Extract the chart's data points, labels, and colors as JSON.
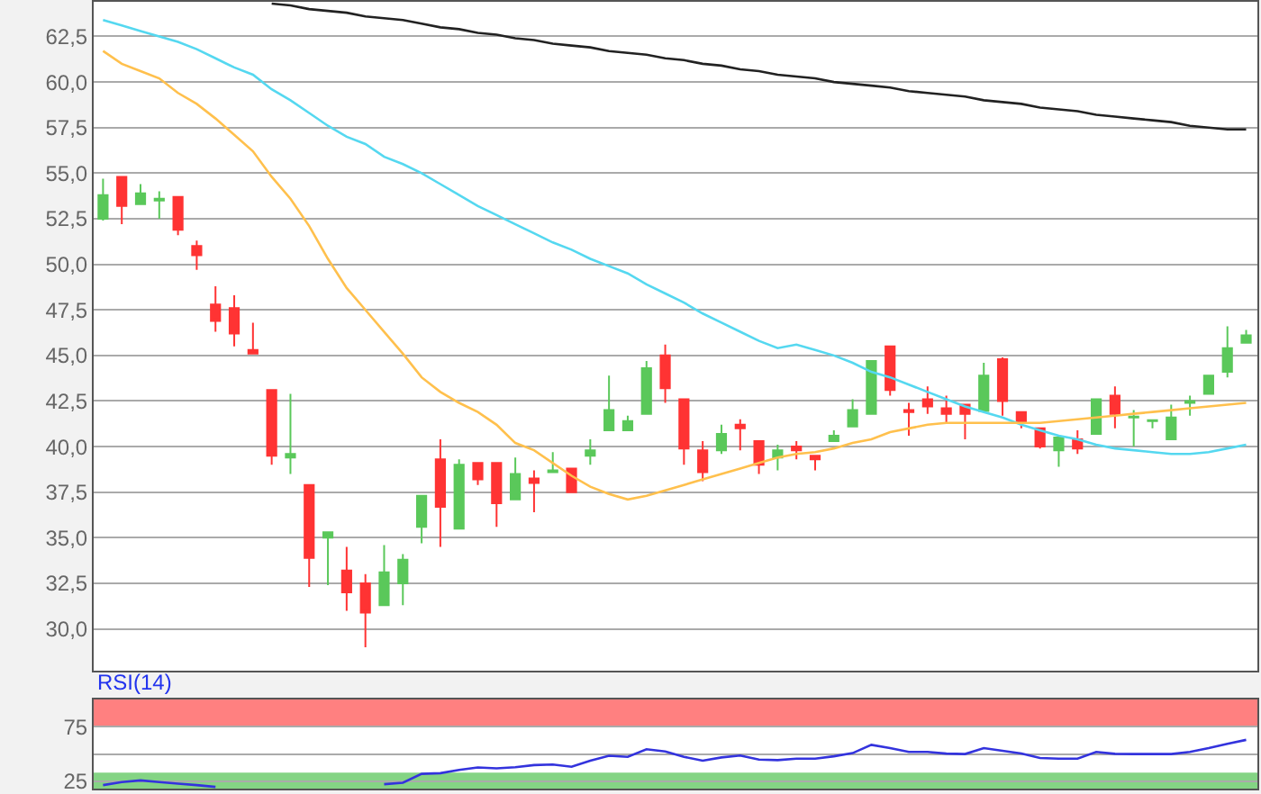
{
  "chart_data": [
    {
      "type": "candlestick",
      "categories": [
        null,
        null,
        null,
        null,
        null,
        null,
        null,
        null,
        null,
        null,
        null,
        null,
        null,
        null,
        null,
        null,
        null,
        null,
        null,
        null,
        null,
        null,
        null,
        null,
        null,
        null,
        null,
        null,
        null,
        null,
        null,
        null,
        null,
        null,
        null,
        null,
        null,
        null,
        null,
        null,
        null,
        null,
        null,
        null,
        null,
        null,
        null,
        null,
        null,
        null,
        null,
        null,
        null,
        null,
        null,
        null,
        null,
        null,
        null,
        null,
        null,
        null
      ],
      "ohlc": [
        [
          52.5,
          54.7,
          52.4,
          53.8
        ],
        [
          54.8,
          54.8,
          52.2,
          53.2
        ],
        [
          53.3,
          54.4,
          53.3,
          53.9
        ],
        [
          53.5,
          54.0,
          52.5,
          53.6
        ],
        [
          53.7,
          53.7,
          51.6,
          51.9
        ],
        [
          51.0,
          51.3,
          49.7,
          50.5
        ],
        [
          47.8,
          48.8,
          46.3,
          46.9
        ],
        [
          47.6,
          48.3,
          45.5,
          46.2
        ],
        [
          45.3,
          46.8,
          45.1,
          45.1
        ],
        [
          43.1,
          43.1,
          39.0,
          39.5
        ],
        [
          39.4,
          42.9,
          38.5,
          39.6
        ],
        [
          37.9,
          37.9,
          32.3,
          33.9
        ],
        [
          35.0,
          35.3,
          32.4,
          35.3
        ],
        [
          33.2,
          34.5,
          31.0,
          32.0
        ],
        [
          32.5,
          33.0,
          29.0,
          30.9
        ],
        [
          31.3,
          34.6,
          31.3,
          33.1
        ],
        [
          32.5,
          34.1,
          31.3,
          33.8
        ],
        [
          35.6,
          37.3,
          34.7,
          37.3
        ],
        [
          39.3,
          40.4,
          34.5,
          36.7
        ],
        [
          35.5,
          39.3,
          35.5,
          39.0
        ],
        [
          39.1,
          39.1,
          37.9,
          38.2
        ],
        [
          39.1,
          39.1,
          35.6,
          36.9
        ],
        [
          37.1,
          39.4,
          37.1,
          38.5
        ],
        [
          38.25,
          38.7,
          36.4,
          38.0
        ],
        [
          38.6,
          39.7,
          38.6,
          38.7
        ],
        [
          38.8,
          38.8,
          37.5,
          37.5
        ],
        [
          39.5,
          40.4,
          39.0,
          39.8
        ],
        [
          40.9,
          43.9,
          40.9,
          42.0
        ],
        [
          40.9,
          41.7,
          40.9,
          41.4
        ],
        [
          41.8,
          44.7,
          41.8,
          44.3
        ],
        [
          45.0,
          45.6,
          42.4,
          43.2
        ],
        [
          42.6,
          42.6,
          39.0,
          39.9
        ],
        [
          39.8,
          40.3,
          38.1,
          38.6
        ],
        [
          39.8,
          41.2,
          39.6,
          40.7
        ],
        [
          41.2,
          41.5,
          39.8,
          41.0
        ],
        [
          40.3,
          40.3,
          38.5,
          39.0
        ],
        [
          39.4,
          40.1,
          38.7,
          39.8
        ],
        [
          40.0,
          40.3,
          39.3,
          39.8
        ],
        [
          39.5,
          39.5,
          38.7,
          39.3
        ],
        [
          40.3,
          40.9,
          40.3,
          40.6
        ],
        [
          41.1,
          42.6,
          41.1,
          42.0
        ],
        [
          41.8,
          44.7,
          41.8,
          44.7
        ],
        [
          45.5,
          45.5,
          42.8,
          43.1
        ],
        [
          42.0,
          42.4,
          40.6,
          41.9
        ],
        [
          42.6,
          43.3,
          41.8,
          42.2
        ],
        [
          42.1,
          42.8,
          41.3,
          41.8
        ],
        [
          42.3,
          42.3,
          40.4,
          41.8
        ],
        [
          41.95,
          44.6,
          41.95,
          43.9
        ],
        [
          44.8,
          44.9,
          41.7,
          42.5
        ],
        [
          41.9,
          41.9,
          41.0,
          41.3
        ],
        [
          41.0,
          41.0,
          39.9,
          40.0
        ],
        [
          39.8,
          40.5,
          38.9,
          40.5
        ],
        [
          40.4,
          40.9,
          39.6,
          39.9
        ],
        [
          40.7,
          42.6,
          40.7,
          42.6
        ],
        [
          42.8,
          43.3,
          41.0,
          41.8
        ],
        [
          41.6,
          42.0,
          40.0,
          41.65
        ],
        [
          41.4,
          41.45,
          41.0,
          41.45
        ],
        [
          40.4,
          42.3,
          40.4,
          41.6
        ],
        [
          42.4,
          42.8,
          41.7,
          42.5
        ],
        [
          42.9,
          43.9,
          42.9,
          43.9
        ],
        [
          44.1,
          46.6,
          43.8,
          45.4
        ],
        [
          45.7,
          46.4,
          45.7,
          46.1
        ]
      ],
      "colors": [
        "#5ac85a",
        "#ff3333",
        "#5ac85a",
        "#5ac85a",
        "#ff3333",
        "#ff3333",
        "#ff3333",
        "#ff3333",
        "#ff3333",
        "#ff3333",
        "#5ac85a",
        "#ff3333",
        "#5ac85a",
        "#ff3333",
        "#ff3333",
        "#5ac85a",
        "#5ac85a",
        "#5ac85a",
        "#ff3333",
        "#5ac85a",
        "#ff3333",
        "#ff3333",
        "#5ac85a",
        "#ff3333",
        "#5ac85a",
        "#ff3333",
        "#5ac85a",
        "#5ac85a",
        "#5ac85a",
        "#5ac85a",
        "#ff3333",
        "#ff3333",
        "#ff3333",
        "#5ac85a",
        "#ff3333",
        "#ff3333",
        "#5ac85a",
        "#ff3333",
        "#ff3333",
        "#5ac85a",
        "#5ac85a",
        "#5ac85a",
        "#ff3333",
        "#ff3333",
        "#ff3333",
        "#ff3333",
        "#ff3333",
        "#5ac85a",
        "#ff3333",
        "#ff3333",
        "#ff3333",
        "#5ac85a",
        "#ff3333",
        "#5ac85a",
        "#ff3333",
        "#5ac85a",
        "#5ac85a",
        "#5ac85a",
        "#5ac85a",
        "#5ac85a",
        "#5ac85a",
        "#5ac85a"
      ],
      "series": [
        {
          "type": "line",
          "color": "#222222",
          "values": [
            null,
            null,
            null,
            null,
            null,
            null,
            null,
            null,
            null,
            64.3,
            64.2,
            64.0,
            63.9,
            63.8,
            63.6,
            63.5,
            63.4,
            63.2,
            63.0,
            62.9,
            62.7,
            62.6,
            62.4,
            62.3,
            62.1,
            62.0,
            61.9,
            61.7,
            61.6,
            61.5,
            61.3,
            61.2,
            61.0,
            60.9,
            60.7,
            60.6,
            60.4,
            60.3,
            60.2,
            60.0,
            59.9,
            59.8,
            59.7,
            59.5,
            59.4,
            59.3,
            59.2,
            59.0,
            58.9,
            58.8,
            58.6,
            58.5,
            58.4,
            58.2,
            58.1,
            58.0,
            57.9,
            57.8,
            57.6,
            57.5,
            57.4,
            57.4
          ]
        },
        {
          "type": "line",
          "color": "#55d8f0",
          "values": [
            63.4,
            63.1,
            62.8,
            62.5,
            62.2,
            61.8,
            61.3,
            60.8,
            60.4,
            59.6,
            59.0,
            58.3,
            57.6,
            57.0,
            56.6,
            55.9,
            55.5,
            55.0,
            54.4,
            53.8,
            53.2,
            52.7,
            52.2,
            51.7,
            51.2,
            50.8,
            50.3,
            49.9,
            49.5,
            48.9,
            48.4,
            47.9,
            47.3,
            46.8,
            46.3,
            45.8,
            45.4,
            45.6,
            45.3,
            45.0,
            44.6,
            44.1,
            43.8,
            43.4,
            43.0,
            42.6,
            42.2,
            41.9,
            41.6,
            41.2,
            40.9,
            40.6,
            40.4,
            40.1,
            39.9,
            39.8,
            39.7,
            39.6,
            39.6,
            39.7,
            39.9,
            40.1
          ]
        },
        {
          "type": "line",
          "color": "#ffc04d",
          "values": [
            61.7,
            61.0,
            60.6,
            60.2,
            59.4,
            58.8,
            58.0,
            57.1,
            56.2,
            54.8,
            53.6,
            52.1,
            50.3,
            48.7,
            47.5,
            46.3,
            45.1,
            43.8,
            43.0,
            42.4,
            41.9,
            41.2,
            40.2,
            39.8,
            39.1,
            38.4,
            37.8,
            37.4,
            37.1,
            37.3,
            37.6,
            37.9,
            38.2,
            38.5,
            38.8,
            39.1,
            39.4,
            39.6,
            39.7,
            39.9,
            40.2,
            40.4,
            40.8,
            41.0,
            41.2,
            41.3,
            41.3,
            41.3,
            41.3,
            41.3,
            41.3,
            41.4,
            41.5,
            41.6,
            41.7,
            41.8,
            41.9,
            42.0,
            42.1,
            42.2,
            42.3,
            42.4
          ]
        }
      ],
      "ylim": [
        27.7,
        64.4
      ],
      "yticks": [
        {
          "value": 30,
          "label": "30,0"
        },
        {
          "value": 32.5,
          "label": "32,5"
        },
        {
          "value": 35,
          "label": "35,0"
        },
        {
          "value": 37.5,
          "label": "37,5"
        },
        {
          "value": 40,
          "label": "40,0"
        },
        {
          "value": 42.5,
          "label": "42,5"
        },
        {
          "value": 45,
          "label": "45,0"
        },
        {
          "value": 47.5,
          "label": "47,5"
        },
        {
          "value": 50,
          "label": "50,0"
        },
        {
          "value": 52.5,
          "label": "52,5"
        },
        {
          "value": 55,
          "label": "55,0"
        },
        {
          "value": 57.5,
          "label": "57,5"
        },
        {
          "value": 60,
          "label": "60,0"
        },
        {
          "value": 62.5,
          "label": "62,5"
        }
      ],
      "grid": "y",
      "tick_labels": "y"
    },
    {
      "type": "line",
      "title": "RSI(14)",
      "categories": [
        null,
        null,
        null,
        null,
        null,
        null,
        null,
        null,
        null,
        null,
        null,
        null,
        null,
        null,
        null,
        null,
        null,
        null,
        null,
        null,
        null,
        null,
        null,
        null,
        null,
        null,
        null,
        null,
        null,
        null,
        null,
        null,
        null,
        null,
        null,
        null,
        null,
        null,
        null,
        null,
        null,
        null,
        null,
        null,
        null,
        null,
        null,
        null,
        null,
        null,
        null,
        null,
        null,
        null,
        null,
        null,
        null,
        null,
        null,
        null,
        null,
        null
      ],
      "series": [
        {
          "color": "#3333dd",
          "values": [
            21.7,
            24.5,
            26.0,
            24.5,
            23.0,
            21.7,
            20.0,
            null,
            null,
            null,
            null,
            null,
            null,
            null,
            null,
            22.5,
            23.9,
            32.0,
            32.6,
            35.5,
            37.8,
            37.0,
            38.0,
            40.0,
            40.5,
            38.5,
            44.0,
            48.5,
            47.5,
            54.5,
            52.5,
            47.5,
            44.0,
            47.0,
            48.7,
            45.0,
            44.5,
            45.8,
            45.8,
            48.0,
            50.9,
            58.5,
            55.5,
            52.0,
            52.0,
            50.5,
            50.1,
            55.5,
            53.0,
            50.5,
            46.5,
            45.8,
            45.8,
            52.0,
            50.3,
            50.1,
            50.1,
            50.1,
            52.0,
            55.5,
            59.5,
            63.0
          ]
        }
      ],
      "ylim": [
        18.5,
        100
      ],
      "yticks": [
        25,
        {
          "value": 50,
          "label": null
        },
        75
      ],
      "bands": [
        {
          "axis": "y",
          "from": 75,
          "to": 100,
          "color": "#ff8080"
        },
        {
          "axis": "y",
          "from": 18.5,
          "to": 33,
          "color": "#84d484"
        }
      ],
      "grid": "y",
      "tick_labels": "y"
    }
  ]
}
